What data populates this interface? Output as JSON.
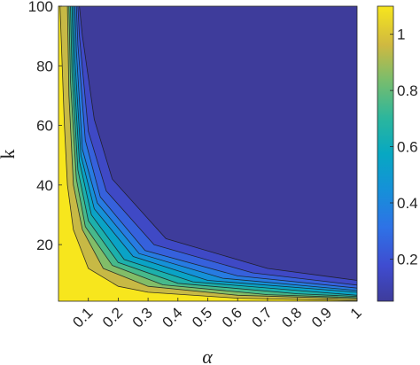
{
  "chart_data": {
    "type": "heatmap",
    "title": "",
    "xlabel": "α",
    "ylabel": "k",
    "xlim": [
      0,
      1
    ],
    "ylim": [
      1,
      100
    ],
    "x_ticks": [
      0.1,
      0.2,
      0.3,
      0.4,
      0.5,
      0.6,
      0.7,
      0.8,
      0.9,
      1
    ],
    "x_tick_labels": [
      "0.1",
      "0.2",
      "0.3",
      "0.4",
      "0.5",
      "0.6",
      "0.7",
      "0.8",
      "0.9",
      "1"
    ],
    "y_ticks": [
      20,
      40,
      60,
      80,
      100
    ],
    "y_tick_labels": [
      "20",
      "40",
      "60",
      "80",
      "100"
    ],
    "colorbar": {
      "colormap": "parula",
      "range": [
        0.05,
        1.1
      ],
      "ticks": [
        0.2,
        0.4,
        0.6,
        0.8,
        1
      ],
      "tick_labels": [
        "0.2",
        "0.4",
        "0.6",
        "0.8",
        "1"
      ]
    },
    "contour_levels": [
      0.1,
      0.2,
      0.3,
      0.4,
      0.5,
      0.6,
      0.7,
      0.8,
      0.9,
      1.0
    ],
    "grid": false,
    "contours": [
      {
        "level": 1.0,
        "points": [
          [
            0.005,
            100
          ],
          [
            0.02,
            60
          ],
          [
            0.03,
            40
          ],
          [
            0.05,
            25
          ],
          [
            0.1,
            12
          ],
          [
            0.2,
            6
          ],
          [
            0.3,
            4
          ],
          [
            0.6,
            2
          ],
          [
            1.0,
            1.2
          ]
        ]
      },
      {
        "level": 0.9,
        "points": [
          [
            0.03,
            100
          ],
          [
            0.035,
            70
          ],
          [
            0.05,
            40
          ],
          [
            0.08,
            25
          ],
          [
            0.15,
            12
          ],
          [
            0.3,
            6
          ],
          [
            0.6,
            3
          ],
          [
            1.0,
            1.8
          ]
        ]
      },
      {
        "level": 0.8,
        "points": [
          [
            0.035,
            100
          ],
          [
            0.04,
            75
          ],
          [
            0.06,
            42
          ],
          [
            0.09,
            26
          ],
          [
            0.18,
            13
          ],
          [
            0.35,
            6.5
          ],
          [
            0.7,
            3.2
          ],
          [
            1.0,
            2.2
          ]
        ]
      },
      {
        "level": 0.7,
        "points": [
          [
            0.04,
            100
          ],
          [
            0.045,
            78
          ],
          [
            0.065,
            45
          ],
          [
            0.1,
            28
          ],
          [
            0.2,
            14
          ],
          [
            0.4,
            7
          ],
          [
            0.8,
            3.5
          ],
          [
            1.0,
            2.6
          ]
        ]
      },
      {
        "level": 0.6,
        "points": [
          [
            0.045,
            100
          ],
          [
            0.05,
            80
          ],
          [
            0.07,
            48
          ],
          [
            0.11,
            30
          ],
          [
            0.22,
            15
          ],
          [
            0.45,
            7.5
          ],
          [
            0.9,
            3.8
          ],
          [
            1.0,
            3.0
          ]
        ]
      },
      {
        "level": 0.5,
        "points": [
          [
            0.05,
            100
          ],
          [
            0.055,
            82
          ],
          [
            0.075,
            50
          ],
          [
            0.12,
            32
          ],
          [
            0.25,
            16
          ],
          [
            0.5,
            8
          ],
          [
            1.0,
            4.0
          ]
        ]
      },
      {
        "level": 0.4,
        "points": [
          [
            0.055,
            100
          ],
          [
            0.06,
            85
          ],
          [
            0.08,
            52
          ],
          [
            0.13,
            34
          ],
          [
            0.27,
            17
          ],
          [
            0.55,
            8.7
          ],
          [
            1.0,
            4.6
          ]
        ]
      },
      {
        "level": 0.3,
        "points": [
          [
            0.06,
            100
          ],
          [
            0.065,
            87
          ],
          [
            0.09,
            55
          ],
          [
            0.14,
            36
          ],
          [
            0.29,
            18
          ],
          [
            0.6,
            9.5
          ],
          [
            1.0,
            5.4
          ]
        ]
      },
      {
        "level": 0.2,
        "points": [
          [
            0.065,
            100
          ],
          [
            0.07,
            90
          ],
          [
            0.1,
            58
          ],
          [
            0.16,
            38
          ],
          [
            0.32,
            20
          ],
          [
            0.65,
            10.5
          ],
          [
            1.0,
            6.4
          ]
        ]
      },
      {
        "level": 0.1,
        "points": [
          [
            0.07,
            100
          ],
          [
            0.08,
            90
          ],
          [
            0.12,
            62
          ],
          [
            0.18,
            42
          ],
          [
            0.36,
            22
          ],
          [
            0.7,
            12
          ],
          [
            1.0,
            8.0
          ]
        ]
      }
    ]
  }
}
